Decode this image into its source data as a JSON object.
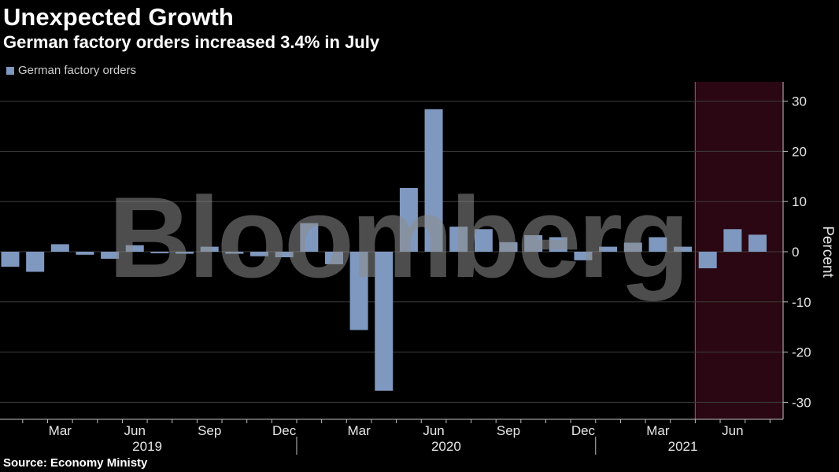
{
  "title": "Unexpected Growth",
  "subtitle": "German factory orders increased 3.4% in July",
  "source": "Source: Economy Ministy",
  "watermark": "Bloomberg",
  "colors": {
    "bar": "#7f98bf",
    "highlight_fill": "#2a0712",
    "highlight_edge": "#c0306a",
    "grid": "#3d3d3d",
    "axis": "#bfbfbf"
  },
  "chart_data": {
    "type": "bar",
    "title": "Unexpected Growth",
    "subtitle": "German factory orders increased 3.4% in July",
    "ylabel": "Percent",
    "ylim": [
      -34,
      34
    ],
    "yticks": [
      -30,
      -20,
      -10,
      0,
      10,
      20,
      30
    ],
    "ytick_labels": [
      "-30",
      "-20",
      "-10",
      "0",
      "10",
      "20",
      "30"
    ],
    "grid": true,
    "legend_position": "top-left",
    "categories": [
      "2019-01",
      "2019-02",
      "2019-03",
      "2019-04",
      "2019-05",
      "2019-06",
      "2019-07",
      "2019-08",
      "2019-09",
      "2019-10",
      "2019-11",
      "2019-12",
      "2020-01",
      "2020-02",
      "2020-03",
      "2020-04",
      "2020-05",
      "2020-06",
      "2020-07",
      "2020-08",
      "2020-09",
      "2020-10",
      "2020-11",
      "2020-12",
      "2021-01",
      "2021-02",
      "2021-03",
      "2021-04",
      "2021-05",
      "2021-06",
      "2021-07"
    ],
    "series": [
      {
        "name": "German factory orders",
        "values": [
          -3.0,
          -4.0,
          1.5,
          -0.6,
          -1.4,
          1.3,
          -0.3,
          -0.4,
          1.0,
          -0.4,
          -0.9,
          -1.1,
          5.7,
          -2.5,
          -15.6,
          -27.7,
          12.7,
          28.4,
          5.0,
          4.5,
          1.9,
          3.3,
          2.9,
          -1.7,
          1.0,
          1.8,
          2.9,
          1.0,
          -3.3,
          4.5,
          3.4
        ]
      }
    ],
    "xtick_labels": [
      {
        "month": "2019-03",
        "label": "Mar"
      },
      {
        "month": "2019-06",
        "label": "Jun"
      },
      {
        "month": "2019-09",
        "label": "Sep"
      },
      {
        "month": "2019-12",
        "label": "Dec"
      },
      {
        "month": "2020-03",
        "label": "Mar"
      },
      {
        "month": "2020-06",
        "label": "Jun"
      },
      {
        "month": "2020-09",
        "label": "Sep"
      },
      {
        "month": "2020-12",
        "label": "Dec"
      },
      {
        "month": "2021-03",
        "label": "Mar"
      },
      {
        "month": "2021-06",
        "label": "Jun"
      }
    ],
    "years": [
      "2019",
      "2020",
      "2021"
    ],
    "highlight_range": [
      "2021-05",
      "2021-07"
    ]
  }
}
